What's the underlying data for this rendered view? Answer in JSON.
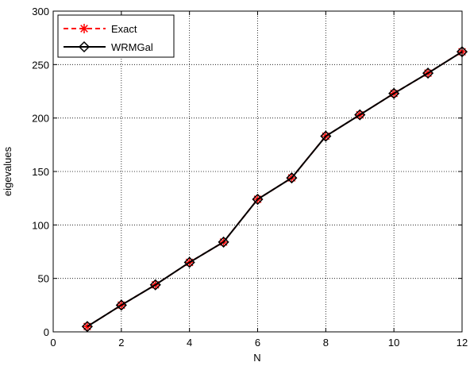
{
  "chart_data": {
    "type": "line",
    "xlabel": "N",
    "ylabel": "eigevalues",
    "xlim": [
      0,
      12
    ],
    "ylim": [
      0,
      300
    ],
    "x_ticks": [
      0,
      2,
      4,
      6,
      8,
      10,
      12
    ],
    "y_ticks": [
      0,
      50,
      100,
      150,
      200,
      250,
      300
    ],
    "grid": true,
    "legend_position": "top-left",
    "x": [
      1,
      2,
      3,
      4,
      5,
      6,
      7,
      8,
      9,
      10,
      11,
      12
    ],
    "series": [
      {
        "name": "Exact",
        "color": "#ff0000",
        "line_style": "dashed",
        "marker": "asterisk",
        "values": [
          5,
          25,
          44,
          65,
          84,
          124,
          144,
          183,
          203,
          223,
          242,
          262
        ]
      },
      {
        "name": "WRMGal",
        "color": "#000000",
        "line_style": "solid",
        "marker": "diamond",
        "values": [
          5,
          25,
          44,
          65,
          84,
          124,
          144,
          183,
          203,
          223,
          242,
          262
        ]
      }
    ]
  }
}
